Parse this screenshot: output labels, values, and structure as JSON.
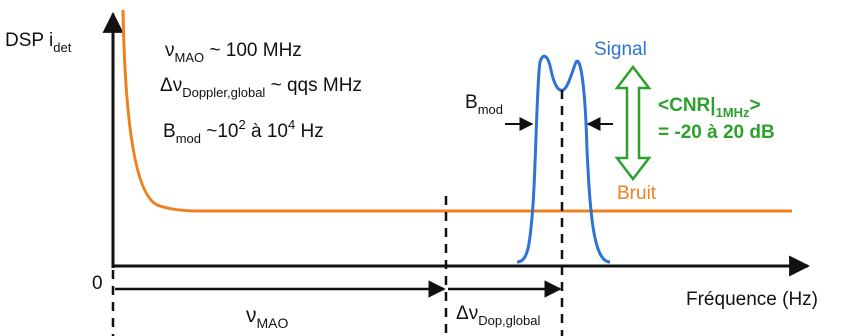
{
  "y_axis": {
    "main": "DSP i",
    "sub": "det"
  },
  "origin_label": "0",
  "x_axis_label": "Fréquence (Hz)",
  "notes": {
    "mao": {
      "sym": "ν",
      "sub": "MAO",
      "rest": " ~ 100 MHz"
    },
    "doppler": {
      "sym": "Δν",
      "sub": "Doppler,global",
      "rest": " ~ qqs MHz"
    },
    "bmod": {
      "sym": "B",
      "sub": "mod",
      "rest1": " ~10",
      "sup1": "2",
      "rest2": " à 10",
      "sup2": "4",
      "rest3": " Hz"
    }
  },
  "signal_label": "Signal",
  "bruit_label": "Bruit",
  "bmod_label": {
    "main": "B",
    "sub": "mod"
  },
  "cnr_label": {
    "line1_a": "<CNR|",
    "line1_sub": "1MHz",
    "line1_b": ">",
    "line2": "= -20 à 20 dB"
  },
  "bottom_labels": {
    "mao": {
      "sym": "ν",
      "sub": "MAO"
    },
    "dop": {
      "sym": "Δν",
      "sub": "Dop,global"
    }
  },
  "colors": {
    "noise": "#F07F1E",
    "signal": "#2E73D6",
    "cnr": "#2DA02D",
    "axis": "#111111"
  }
}
